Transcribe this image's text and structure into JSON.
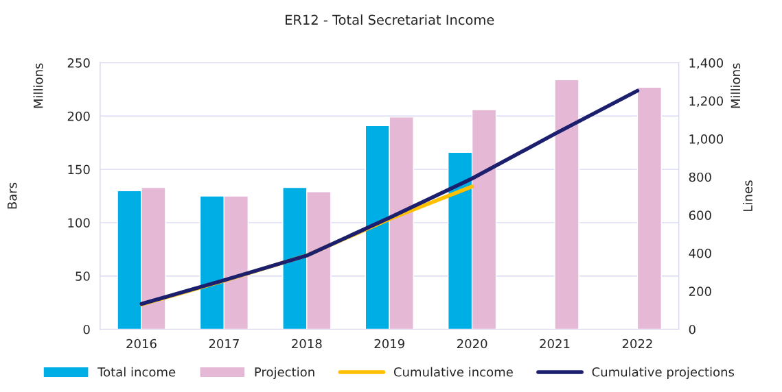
{
  "chart_data": {
    "type": "bar",
    "title": "ER12 - Total Secretariat Income",
    "categories": [
      "2016",
      "2017",
      "2018",
      "2019",
      "2020",
      "2021",
      "2022"
    ],
    "series": [
      {
        "name": "Total income",
        "color": "#00aee6",
        "values": [
          130,
          125,
          133,
          191,
          166,
          null,
          null
        ]
      },
      {
        "name": "Projection",
        "color": "#e5b8d6",
        "values": [
          133,
          125,
          129,
          199,
          206,
          234,
          227
        ]
      },
      {
        "name": "Cumulative income",
        "type": "line",
        "axis": "y2",
        "color": "#ffc000",
        "values": [
          130,
          255,
          388,
          579,
          750,
          null,
          null
        ]
      },
      {
        "name": "Cumulative projections",
        "type": "line",
        "axis": "y2",
        "color": "#1b1f6e",
        "values": [
          133,
          258,
          387,
          586,
          792,
          1026,
          1253
        ]
      }
    ],
    "ylabel": "Bars",
    "y2label": "Lines",
    "ylim": [
      0,
      250
    ],
    "yticks": [
      0,
      50,
      100,
      150,
      200,
      250
    ],
    "y2lim": [
      0,
      1400
    ],
    "y2ticks": [
      0,
      200,
      400,
      600,
      800,
      {
        "value": 1000,
        "label": "1,000"
      },
      {
        "value": 1200,
        "label": "1,200"
      },
      {
        "value": 1400,
        "label": "1,400"
      }
    ],
    "annotations": [
      "Millions",
      "Millions"
    ],
    "grid": "y",
    "legend": "bottom",
    "marker": "none",
    "line_style": "solid"
  }
}
